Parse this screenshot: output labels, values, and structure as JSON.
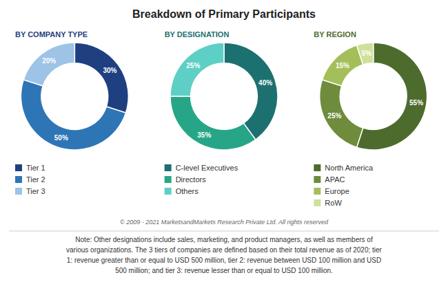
{
  "title": "Breakdown of Primary Participants",
  "chart_data": [
    {
      "type": "pie",
      "title": "BY COMPANY TYPE",
      "categories": [
        "Tier 1",
        "Tier 2",
        "Tier 3"
      ],
      "values": [
        30,
        50,
        20
      ],
      "value_labels": [
        "30%",
        "50%",
        "20%"
      ],
      "colors": [
        "#1f4080",
        "#2e75b6",
        "#9dc3e6"
      ],
      "data_labels": true,
      "legend": "bottom"
    },
    {
      "type": "pie",
      "title": "BY DESIGNATION",
      "categories": [
        "C-level Executives",
        "Directors",
        "Others"
      ],
      "values": [
        40,
        35,
        25
      ],
      "value_labels": [
        "40%",
        "35%",
        "25%"
      ],
      "colors": [
        "#1d7070",
        "#26a687",
        "#5ecfc5"
      ],
      "data_labels": true,
      "legend": "bottom"
    },
    {
      "type": "pie",
      "title": "BY REGION",
      "categories": [
        "North America",
        "APAC",
        "Europe",
        "RoW"
      ],
      "values": [
        55,
        25,
        15,
        5
      ],
      "value_labels": [
        "55%",
        "25%",
        "15%",
        "5%"
      ],
      "colors": [
        "#4e6b2e",
        "#6e8c3c",
        "#a4bf5a",
        "#cfe09a"
      ],
      "data_labels": true,
      "legend": "bottom"
    }
  ],
  "annotations": [
    "© 2009  - 2021  MarketsandMarkets Research Private Ltd. All rights reserved",
    "Note: Other designations include sales, marketing, and product managers, as well as members of\nvarious organizations. The 3 tiers of companies are defined based on their total revenue as of 2020; tier\n1: revenue greater than or equal to USD 500 million, tier 2: revenue between USD 100 million and USD\n500 million; and tier 3: revenue lesser than or equal to USD 100 million."
  ]
}
